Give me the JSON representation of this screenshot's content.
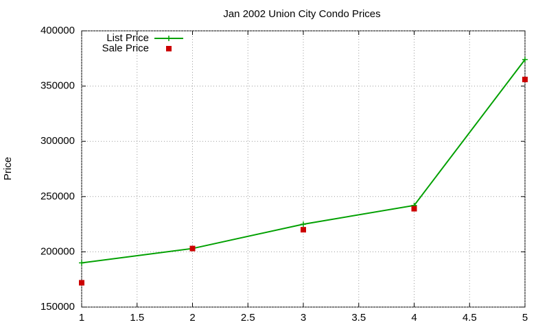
{
  "chart_data": {
    "type": "line",
    "title": "Jan 2002 Union City Condo Prices",
    "y_label": "Price",
    "x": [
      1,
      2,
      3,
      4,
      5
    ],
    "series": [
      {
        "name": "List Price",
        "color": "#00a000",
        "style": "linespoints",
        "values": [
          190000,
          203000,
          225000,
          242000,
          374000
        ]
      },
      {
        "name": "Sale Price",
        "color": "#cc0000",
        "style": "points",
        "values": [
          172000,
          203000,
          220000,
          239000,
          356000
        ]
      }
    ],
    "xlim": [
      1,
      5
    ],
    "xticks": [
      1,
      1.5,
      2,
      2.5,
      3,
      3.5,
      4,
      4.5,
      5
    ],
    "ylim": [
      150000,
      400000
    ],
    "yticks": [
      150000,
      200000,
      250000,
      300000,
      350000,
      400000
    ],
    "grid": true,
    "legend": "top-left"
  }
}
